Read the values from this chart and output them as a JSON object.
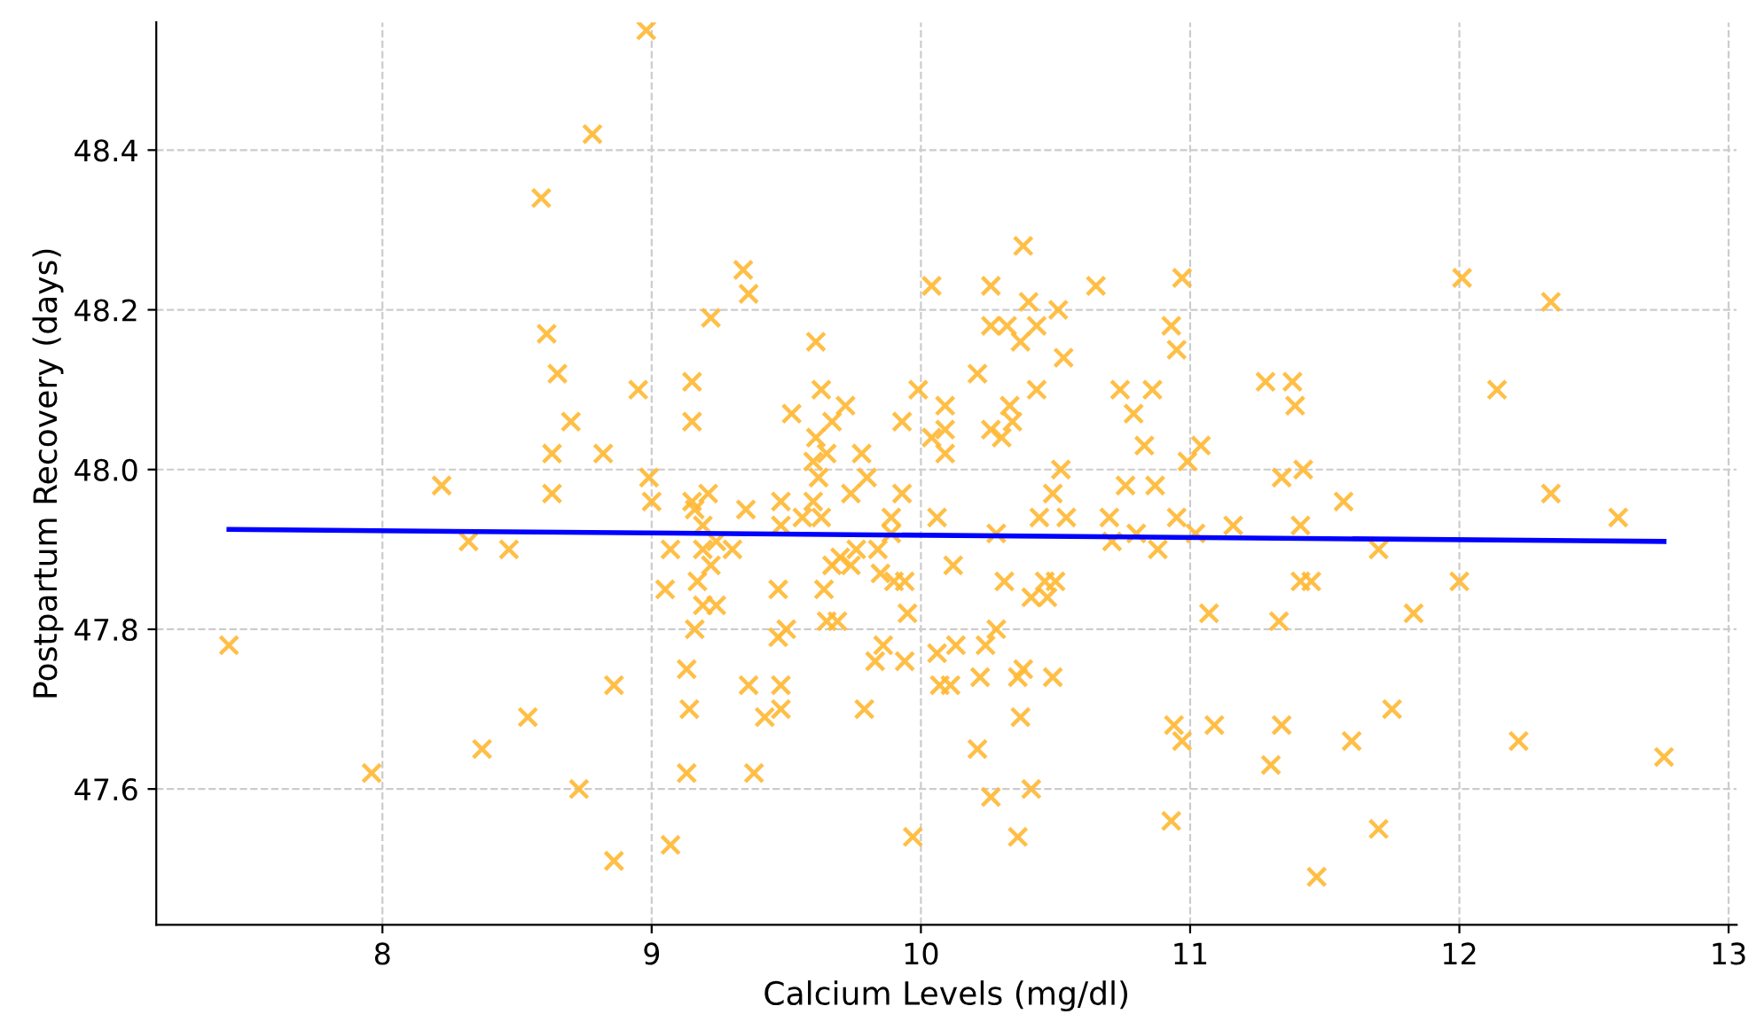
{
  "chart_data": {
    "type": "scatter",
    "xlabel": "Calcium Levels (mg/dl)",
    "ylabel": "Postpartum Recovery (days)",
    "xlim": [
      7.16,
      13.03
    ],
    "ylim": [
      47.43,
      48.56
    ],
    "xticks": [
      8,
      9,
      10,
      11,
      12,
      13
    ],
    "yticks": [
      47.6,
      47.8,
      {
        "value": 48.0,
        "label": "48.0"
      },
      48.2,
      48.4
    ],
    "grid": true,
    "series": [
      {
        "marker": "cross",
        "color": "#ffb833",
        "x": [
          7.43,
          7.96,
          8.22,
          8.32,
          8.47,
          8.37,
          8.54,
          8.59,
          8.61,
          8.65,
          8.63,
          8.63,
          8.7,
          8.73,
          8.78,
          8.82,
          8.86,
          8.86,
          8.95,
          8.98,
          8.99,
          9.0,
          9.05,
          9.07,
          9.07,
          9.13,
          9.13,
          9.14,
          9.15,
          9.15,
          9.15,
          9.16,
          9.16,
          9.17,
          9.19,
          9.19,
          9.19,
          9.21,
          9.22,
          9.24,
          9.24,
          9.22,
          9.3,
          9.34,
          9.36,
          9.35,
          9.36,
          9.38,
          9.42,
          9.47,
          9.47,
          9.48,
          9.48,
          9.48,
          9.48,
          9.5,
          9.52,
          9.56,
          9.6,
          9.61,
          9.6,
          9.61,
          9.62,
          9.63,
          9.63,
          9.64,
          9.65,
          9.65,
          9.67,
          9.67,
          9.69,
          9.7,
          9.72,
          9.74,
          9.74,
          9.76,
          9.78,
          9.79,
          9.8,
          9.83,
          9.84,
          9.86,
          9.85,
          9.89,
          9.89,
          9.9,
          9.93,
          9.93,
          9.94,
          9.95,
          9.94,
          9.97,
          9.99,
          10.04,
          10.04,
          10.06,
          10.06,
          10.07,
          10.09,
          10.09,
          10.09,
          10.11,
          10.12,
          10.13,
          10.21,
          10.21,
          10.22,
          10.24,
          10.26,
          10.26,
          10.26,
          10.28,
          10.26,
          10.28,
          10.3,
          10.31,
          10.32,
          10.33,
          10.34,
          10.36,
          10.36,
          10.38,
          10.37,
          10.37,
          10.38,
          10.4,
          10.41,
          10.41,
          10.44,
          10.43,
          10.43,
          10.46,
          10.47,
          10.49,
          10.49,
          10.5,
          10.52,
          10.51,
          10.53,
          10.54,
          10.65,
          10.7,
          10.71,
          10.74,
          10.76,
          10.79,
          10.8,
          10.83,
          10.86,
          10.87,
          10.88,
          10.93,
          10.94,
          10.93,
          10.95,
          10.97,
          10.95,
          10.97,
          10.99,
          11.02,
          11.04,
          11.07,
          11.09,
          11.16,
          11.28,
          11.3,
          11.33,
          11.34,
          11.34,
          11.38,
          11.39,
          11.41,
          11.41,
          11.42,
          11.45,
          11.47,
          11.57,
          11.6,
          11.7,
          11.7,
          11.75,
          11.83,
          12.0,
          12.01,
          12.14,
          12.22,
          12.34,
          12.34,
          12.59,
          12.76
        ],
        "values": [
          47.78,
          47.62,
          47.98,
          47.91,
          47.9,
          47.65,
          47.69,
          48.34,
          48.17,
          48.12,
          48.02,
          47.97,
          48.06,
          47.6,
          48.42,
          48.02,
          47.73,
          47.51,
          48.1,
          48.55,
          47.99,
          47.96,
          47.85,
          47.9,
          47.53,
          47.75,
          47.62,
          47.7,
          48.11,
          48.06,
          47.96,
          47.95,
          47.8,
          47.86,
          47.9,
          47.93,
          47.83,
          47.97,
          47.88,
          47.83,
          47.91,
          48.19,
          47.9,
          48.25,
          48.22,
          47.95,
          47.73,
          47.62,
          47.69,
          47.85,
          47.79,
          47.96,
          47.93,
          47.73,
          47.7,
          47.8,
          48.07,
          47.94,
          47.96,
          48.16,
          48.01,
          48.04,
          47.99,
          48.1,
          47.94,
          47.85,
          47.81,
          48.02,
          47.88,
          48.06,
          47.81,
          47.89,
          48.08,
          47.88,
          47.97,
          47.9,
          48.02,
          47.7,
          47.99,
          47.76,
          47.9,
          47.78,
          47.87,
          47.92,
          47.94,
          47.86,
          48.06,
          47.97,
          47.86,
          47.82,
          47.76,
          47.54,
          48.1,
          48.23,
          48.04,
          47.94,
          47.77,
          47.73,
          48.08,
          48.05,
          48.02,
          47.73,
          47.88,
          47.78,
          48.12,
          47.65,
          47.74,
          47.78,
          48.05,
          48.23,
          48.18,
          47.92,
          47.59,
          47.8,
          48.04,
          47.86,
          48.18,
          48.08,
          48.06,
          47.54,
          47.74,
          47.75,
          47.69,
          48.16,
          48.28,
          48.21,
          47.84,
          47.6,
          47.94,
          48.1,
          48.18,
          47.86,
          47.84,
          47.97,
          47.74,
          47.86,
          48.0,
          48.2,
          48.14,
          47.94,
          48.23,
          47.94,
          47.91,
          48.1,
          47.98,
          48.07,
          47.92,
          48.03,
          48.1,
          47.98,
          47.9,
          47.56,
          47.68,
          48.18,
          48.15,
          48.24,
          47.94,
          47.66,
          48.01,
          47.92,
          48.03,
          47.82,
          47.68,
          47.93,
          48.11,
          47.63,
          47.81,
          47.99,
          47.68,
          48.11,
          48.08,
          47.86,
          47.93,
          48.0,
          47.86,
          47.49,
          47.96,
          47.66,
          47.9,
          47.55,
          47.7,
          47.82,
          47.86,
          48.24,
          48.1,
          47.66,
          48.21,
          47.97,
          47.94,
          47.64
        ]
      },
      {
        "type": "line",
        "color": "#0000ff",
        "x": [
          7.43,
          12.76
        ],
        "values": [
          47.925,
          47.91
        ]
      }
    ]
  }
}
